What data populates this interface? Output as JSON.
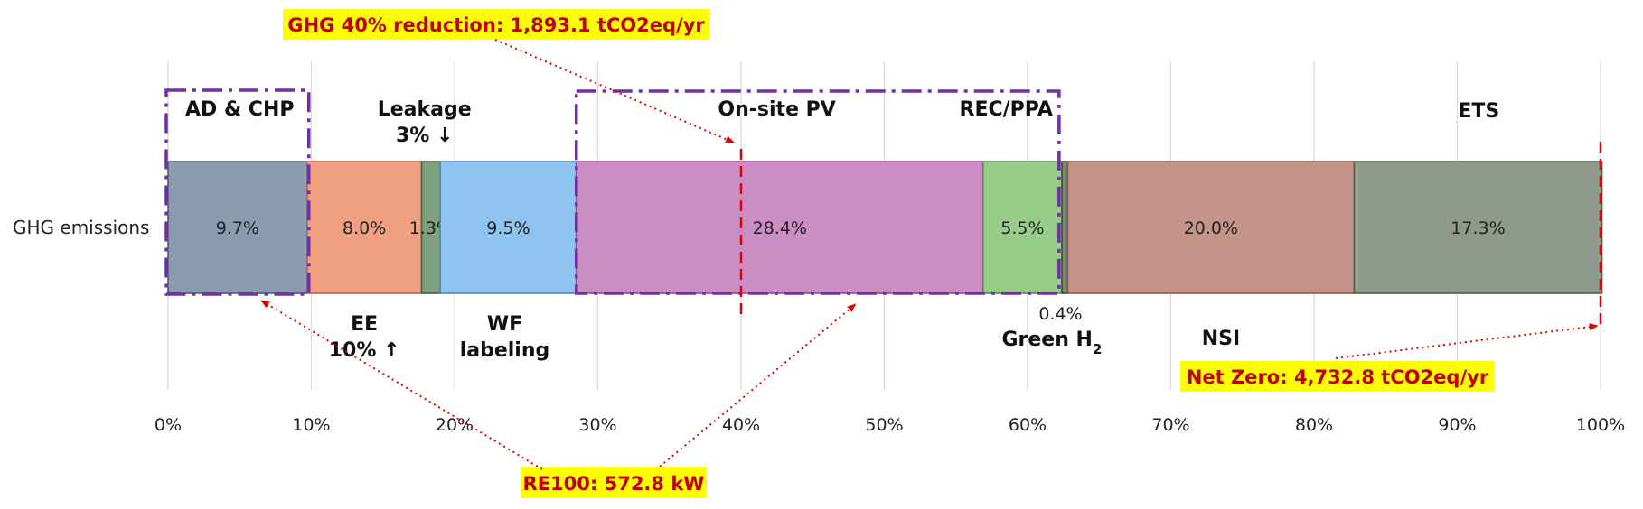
{
  "chart_data": {
    "type": "bar",
    "orientation": "horizontal",
    "stacked": true,
    "category": "GHG emissions",
    "x_ticks": [
      "0%",
      "10%",
      "20%",
      "30%",
      "40%",
      "50%",
      "60%",
      "70%",
      "80%",
      "90%",
      "100%"
    ],
    "xlim": [
      0,
      100
    ],
    "grid": true,
    "segments": [
      {
        "value": 9.7,
        "label": "9.7%",
        "color": "#8a9bb0"
      },
      {
        "value": 8.0,
        "label": "8.0%",
        "color": "#f0a080"
      },
      {
        "value": 1.3,
        "label": "1.3%",
        "color": "#7fa07f"
      },
      {
        "value": 9.5,
        "label": "9.5%",
        "color": "#90c4f0"
      },
      {
        "value": 28.4,
        "label": "28.4%",
        "color": "#cc8cc4"
      },
      {
        "value": 5.5,
        "label": "5.5%",
        "color": "#96cc88"
      },
      {
        "value": 0.4,
        "label": "",
        "color": "#7a8a7a"
      },
      {
        "value": 20.0,
        "label": "20.0%",
        "color": "#c49488"
      },
      {
        "value": 17.3,
        "label": "17.3%",
        "color": "#8f9a8a"
      }
    ],
    "annotations": {
      "above": [
        {
          "text": "AD & CHP",
          "x": 5
        },
        {
          "text": "Leakage",
          "x": 17.9
        },
        {
          "text": "3% ↓",
          "x": 17.9
        },
        {
          "text": "On-site PV",
          "x": 42.5
        },
        {
          "text": "REC/PPA",
          "x": 58.5
        },
        {
          "text": "ETS",
          "x": 91.5
        }
      ],
      "below": [
        {
          "text": "EE",
          "x": 13.7
        },
        {
          "text": "10% ↑",
          "x": 13.7
        },
        {
          "text": "WF",
          "x": 23.5
        },
        {
          "text": "labeling",
          "x": 23.5
        },
        {
          "text": "NSI",
          "x": 73.5
        }
      ],
      "green_h2": {
        "value_label": "0.4%",
        "label": "Green H",
        "subscript": "2"
      },
      "highlights": [
        {
          "text": "GHG 40% reduction: 1,893.1 tCO2eq/yr",
          "target_x": 40
        },
        {
          "text": "RE100: 572.8 kW",
          "target_x": 48
        },
        {
          "text": "Net Zero: 4,732.8 tCO2eq/yr",
          "target_x": 100
        }
      ]
    }
  }
}
